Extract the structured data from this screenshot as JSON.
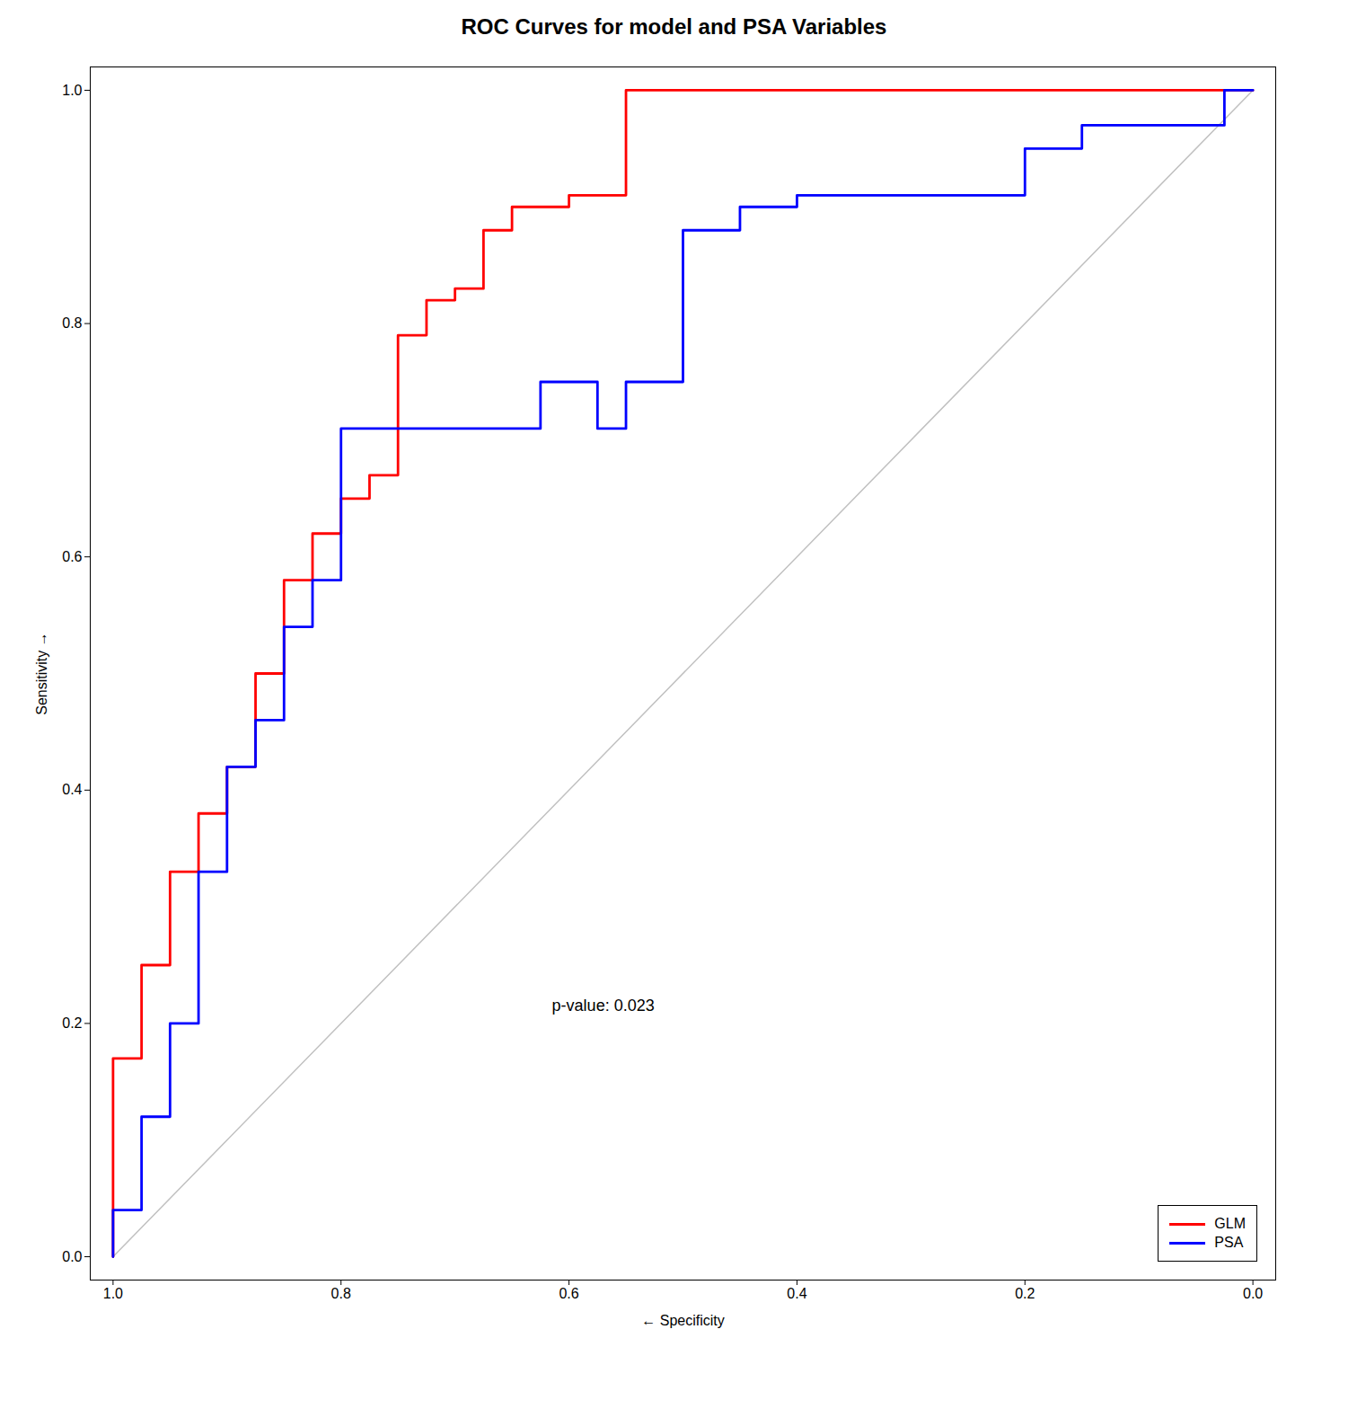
{
  "chart_data": {
    "type": "line",
    "title": "ROC Curves for model and PSA Variables",
    "xlabel": "Specificity",
    "ylabel": "Sensitivity",
    "xlim": [
      1.02,
      -0.02
    ],
    "ylim": [
      -0.02,
      1.02
    ],
    "xticks": [
      {
        "value": 1,
        "label": "1.0"
      },
      0.8,
      0.6,
      0.4,
      0.2,
      {
        "value": 0,
        "label": "0.0"
      }
    ],
    "yticks": [
      {
        "value": 0,
        "label": "0.0"
      },
      0.2,
      0.4,
      0.6,
      0.8,
      {
        "value": 1,
        "label": "1.0"
      }
    ],
    "grid": false,
    "legend": "lower right",
    "diagonal": {
      "x": [
        1,
        0
      ],
      "values": [
        0,
        1
      ],
      "color": "#C0C0C0"
    },
    "annotations": [
      {
        "text": "p-value: 0.023",
        "x": 0.57,
        "y": 0.215
      }
    ],
    "series": [
      {
        "name": "GLM",
        "color": "#FF0000",
        "x": [
          1.0,
          1.0,
          0.975,
          0.975,
          0.95,
          0.95,
          0.925,
          0.925,
          0.9,
          0.9,
          0.875,
          0.875,
          0.85,
          0.85,
          0.825,
          0.825,
          0.8,
          0.8,
          0.775,
          0.775,
          0.75,
          0.75,
          0.725,
          0.725,
          0.7,
          0.7,
          0.675,
          0.675,
          0.65,
          0.65,
          0.6,
          0.6,
          0.55,
          0.55,
          0.0
        ],
        "values": [
          0.0,
          0.17,
          0.17,
          0.25,
          0.25,
          0.33,
          0.33,
          0.38,
          0.38,
          0.42,
          0.42,
          0.5,
          0.5,
          0.58,
          0.58,
          0.62,
          0.62,
          0.65,
          0.65,
          0.67,
          0.67,
          0.79,
          0.79,
          0.82,
          0.82,
          0.83,
          0.83,
          0.88,
          0.88,
          0.9,
          0.9,
          0.91,
          0.91,
          1.0,
          1.0
        ]
      },
      {
        "name": "PSA",
        "color": "#0000FF",
        "x": [
          1.0,
          1.0,
          0.975,
          0.975,
          0.95,
          0.95,
          0.925,
          0.925,
          0.9,
          0.9,
          0.875,
          0.875,
          0.85,
          0.85,
          0.825,
          0.825,
          0.8,
          0.8,
          0.625,
          0.625,
          0.575,
          0.575,
          0.55,
          0.55,
          0.5,
          0.5,
          0.45,
          0.45,
          0.4,
          0.4,
          0.2,
          0.2,
          0.15,
          0.15,
          0.075,
          0.075,
          0.025,
          0.025,
          0.0
        ],
        "values": [
          0.0,
          0.04,
          0.04,
          0.12,
          0.12,
          0.2,
          0.2,
          0.33,
          0.33,
          0.42,
          0.42,
          0.46,
          0.46,
          0.54,
          0.54,
          0.58,
          0.58,
          0.71,
          0.71,
          0.75,
          0.75,
          0.71,
          0.71,
          0.75,
          0.75,
          0.88,
          0.88,
          0.9,
          0.9,
          0.91,
          0.91,
          0.95,
          0.95,
          0.97,
          0.97,
          0.97,
          0.97,
          1.0,
          1.0
        ]
      }
    ]
  }
}
